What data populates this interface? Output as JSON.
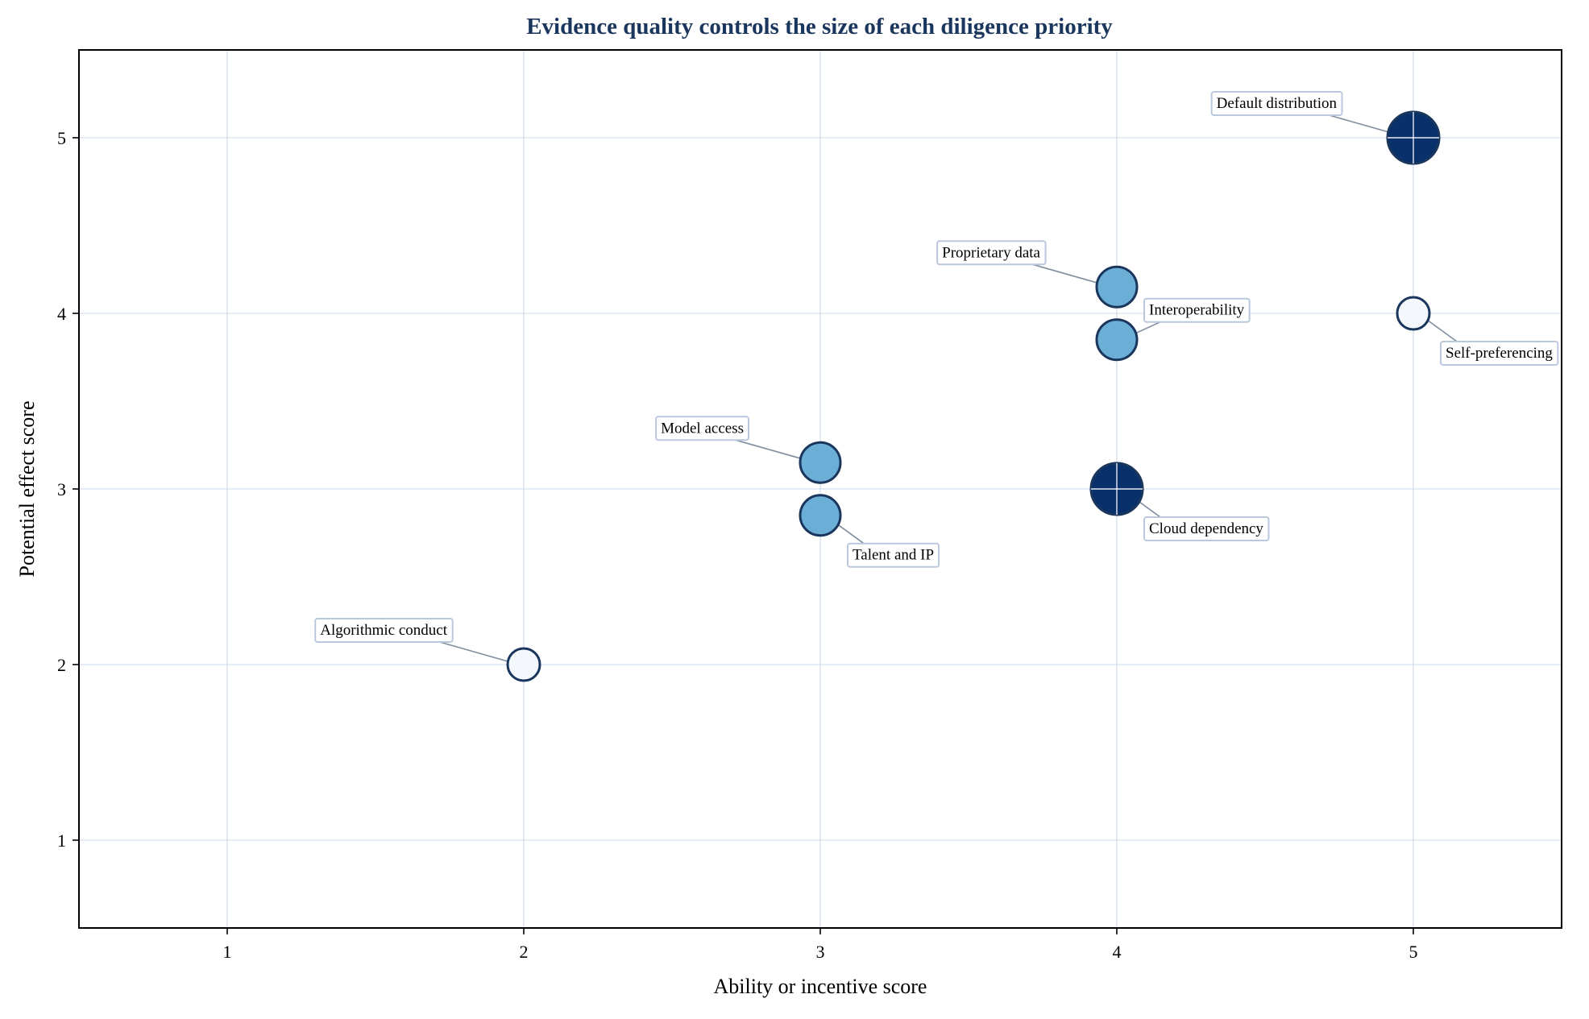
{
  "chart_data": {
    "type": "scatter",
    "title": "Evidence quality controls the size of each diligence priority",
    "xlabel": "Ability or incentive score",
    "ylabel": "Potential effect score",
    "xlim": [
      0.5,
      5.5
    ],
    "ylim": [
      0.5,
      5.5
    ],
    "xticks": [
      1,
      2,
      3,
      4,
      5
    ],
    "yticks": [
      1,
      2,
      3,
      4,
      5
    ],
    "grid": true,
    "colors": {
      "title": "#1b365d",
      "edge": "#1b365d",
      "grid": "#d5e0ef",
      "dark": "#08306b",
      "medium": "#6baed6",
      "light": "#f4f8fd"
    },
    "points": [
      {
        "label": "Default distribution",
        "x": 5,
        "y": 5.0,
        "size": 1.0,
        "color": "#08306b",
        "label_pos": "upper-left"
      },
      {
        "label": "Proprietary data",
        "x": 4,
        "y": 4.15,
        "size": 0.65,
        "color": "#6baed6",
        "label_pos": "upper-left"
      },
      {
        "label": "Interoperability",
        "x": 4,
        "y": 3.85,
        "size": 0.65,
        "color": "#6baed6",
        "label_pos": "upper-right"
      },
      {
        "label": "Self-preferencing",
        "x": 5,
        "y": 4.0,
        "size": 0.4,
        "color": "#f4f8fd",
        "label_pos": "lower-right"
      },
      {
        "label": "Model access",
        "x": 3,
        "y": 3.15,
        "size": 0.65,
        "color": "#6baed6",
        "label_pos": "upper-left"
      },
      {
        "label": "Talent and IP",
        "x": 3,
        "y": 2.85,
        "size": 0.65,
        "color": "#6baed6",
        "label_pos": "lower-right"
      },
      {
        "label": "Cloud dependency",
        "x": 4,
        "y": 3.0,
        "size": 1.0,
        "color": "#08306b",
        "label_pos": "lower-right"
      },
      {
        "label": "Algorithmic conduct",
        "x": 2,
        "y": 2.0,
        "size": 0.4,
        "color": "#f4f8fd",
        "label_pos": "upper-left"
      }
    ]
  }
}
